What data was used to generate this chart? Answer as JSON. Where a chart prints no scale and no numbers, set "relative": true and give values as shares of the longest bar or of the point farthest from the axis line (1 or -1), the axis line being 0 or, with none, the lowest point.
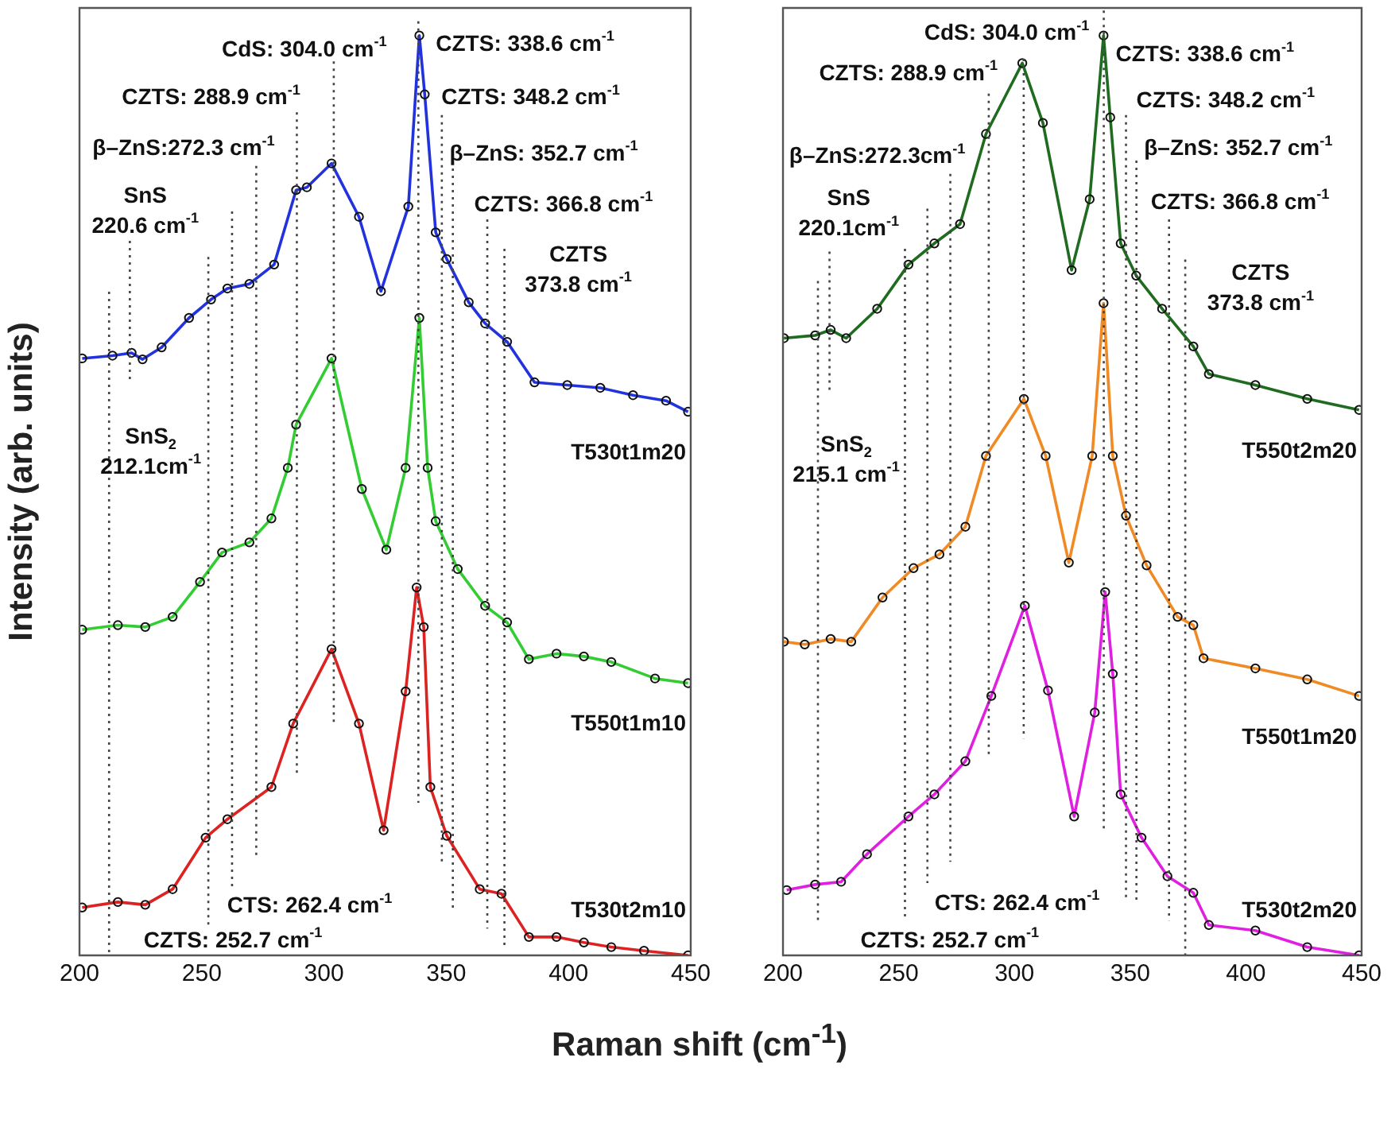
{
  "chart_data": [
    {
      "type": "line",
      "relative": true,
      "ylabel": "Intensity (arb. units)",
      "xlabel": "Raman shift (cm$^{-1}$)",
      "xlim": [
        200,
        450
      ],
      "xticks": [
        200,
        250,
        300,
        350,
        400,
        450
      ],
      "marker": "circle",
      "legend": false,
      "series": [
        {
          "name": "T530t1m20",
          "color": "#2233dd",
          "x": [
            201.1,
            213.5,
            221.3,
            225.8,
            233.6,
            244.8,
            253.8,
            260.5,
            269.5,
            279.6,
            288.6,
            293.0,
            303.1,
            314.3,
            323.3,
            334.5,
            339.0,
            341.2,
            345.7,
            350.2,
            359.2,
            365.9,
            374.9,
            386.1,
            399.5,
            413.0,
            426.4,
            439.9,
            448.9
          ],
          "values": [
            0.649,
            0.652,
            0.655,
            0.648,
            0.661,
            0.693,
            0.713,
            0.725,
            0.73,
            0.751,
            0.832,
            0.835,
            0.861,
            0.803,
            0.722,
            0.814,
            1.0,
            0.936,
            0.786,
            0.757,
            0.71,
            0.687,
            0.667,
            0.623,
            0.62,
            0.617,
            0.609,
            0.603,
            0.591
          ]
        },
        {
          "name": "T550t1m10",
          "color": "#33cc33",
          "x": [
            201.1,
            215.7,
            226.9,
            238.1,
            249.3,
            258.3,
            269.5,
            278.5,
            285.2,
            288.6,
            303.1,
            315.5,
            325.5,
            333.4,
            339.0,
            342.4,
            345.7,
            354.7,
            365.9,
            374.9,
            383.8,
            395.1,
            406.3,
            417.5,
            435.4,
            448.9
          ],
          "values": [
            0.354,
            0.359,
            0.357,
            0.368,
            0.406,
            0.438,
            0.449,
            0.475,
            0.53,
            0.577,
            0.649,
            0.507,
            0.441,
            0.53,
            0.693,
            0.53,
            0.472,
            0.42,
            0.38,
            0.362,
            0.322,
            0.328,
            0.325,
            0.319,
            0.301,
            0.296
          ]
        },
        {
          "name": "T530t2m10",
          "color": "#dd2222",
          "x": [
            201.1,
            215.7,
            226.9,
            238.1,
            251.6,
            260.5,
            278.5,
            287.4,
            303.1,
            314.3,
            324.4,
            333.4,
            337.9,
            340.8,
            343.5,
            350.2,
            363.7,
            372.6,
            383.8,
            395.1,
            406.3,
            417.5,
            430.9,
            448.9
          ],
          "values": [
            0.052,
            0.058,
            0.055,
            0.072,
            0.128,
            0.148,
            0.183,
            0.252,
            0.333,
            0.252,
            0.136,
            0.287,
            0.4,
            0.357,
            0.183,
            0.13,
            0.072,
            0.067,
            0.02,
            0.02,
            0.014,
            0.009,
            0.005,
            0.0
          ]
        }
      ],
      "ref_lines": [
        {
          "axis": "x",
          "value": 212.1,
          "label": "SnS$_{2}$\n212.1cm$^{-1}$",
          "line_style": "dotted"
        },
        {
          "axis": "x",
          "value": 220.6,
          "label": "SnS\n220.6 cm$^{-1}$",
          "line_style": "dotted"
        },
        {
          "axis": "x",
          "value": 252.7,
          "label": "CZTS: 252.7 cm$^{-1}$",
          "line_style": "dotted"
        },
        {
          "axis": "x",
          "value": 262.4,
          "label": "CTS: 262.4 cm$^{-1}$",
          "line_style": "dotted"
        },
        {
          "axis": "x",
          "value": 272.3,
          "label": "β–ZnS:272.3 cm$^{-1}$",
          "line_style": "dotted"
        },
        {
          "axis": "x",
          "value": 288.9,
          "label": "CZTS: 288.9 cm$^{-1}$",
          "line_style": "dotted"
        },
        {
          "axis": "x",
          "value": 304.0,
          "label": "CdS: 304.0 cm$^{-1}$",
          "line_style": "dotted"
        },
        {
          "axis": "x",
          "value": 338.6,
          "label": "CZTS: 338.6 cm$^{-1}$",
          "line_style": "dotted"
        },
        {
          "axis": "x",
          "value": 348.2,
          "label": "CZTS: 348.2 cm$^{-1}$",
          "line_style": "dotted"
        },
        {
          "axis": "x",
          "value": 352.7,
          "label": "β–ZnS: 352.7 cm$^{-1}$",
          "line_style": "dotted"
        },
        {
          "axis": "x",
          "value": 366.8,
          "label": "CZTS: 366.8 cm$^{-1}$",
          "line_style": "dotted"
        },
        {
          "axis": "x",
          "value": 373.8,
          "label": "CZTS\n373.8 cm$^{-1}$",
          "line_style": "dotted"
        }
      ]
    },
    {
      "type": "line",
      "relative": true,
      "xlim": [
        200,
        450
      ],
      "xticks": [
        200,
        250,
        300,
        350,
        400,
        450
      ],
      "marker": "circle",
      "legend": false,
      "series": [
        {
          "name": "T550t2m20",
          "color": "#1f6b1f",
          "x": [
            200.4,
            213.9,
            220.6,
            227.3,
            240.7,
            254.2,
            265.4,
            276.5,
            287.7,
            303.4,
            312.3,
            324.7,
            332.5,
            338.5,
            341.4,
            345.9,
            352.6,
            363.8,
            377.3,
            384.0,
            404.1,
            426.5,
            448.9
          ],
          "values": [
            0.671,
            0.674,
            0.68,
            0.671,
            0.703,
            0.751,
            0.774,
            0.795,
            0.893,
            0.97,
            0.905,
            0.745,
            0.822,
            1.0,
            0.911,
            0.774,
            0.739,
            0.703,
            0.662,
            0.632,
            0.62,
            0.605,
            0.593
          ]
        },
        {
          "name": "T550t1m20",
          "color": "#f08a24",
          "x": [
            200.4,
            209.4,
            220.6,
            229.5,
            243.0,
            256.4,
            267.6,
            278.8,
            287.7,
            304.1,
            313.5,
            323.5,
            333.6,
            338.5,
            342.5,
            348.2,
            357.1,
            370.5,
            377.3,
            381.7,
            404.1,
            426.5,
            448.9
          ],
          "values": [
            0.341,
            0.338,
            0.344,
            0.341,
            0.389,
            0.421,
            0.436,
            0.466,
            0.543,
            0.605,
            0.543,
            0.427,
            0.543,
            0.709,
            0.543,
            0.478,
            0.424,
            0.368,
            0.359,
            0.323,
            0.312,
            0.3,
            0.282
          ]
        },
        {
          "name": "T530t2m20",
          "color": "#e020e0",
          "x": [
            201.6,
            213.9,
            225.1,
            236.3,
            254.2,
            265.4,
            278.8,
            290.0,
            304.5,
            314.5,
            325.8,
            334.7,
            339.2,
            342.5,
            345.9,
            354.9,
            366.1,
            377.3,
            384.0,
            404.1,
            426.5,
            448.9
          ],
          "values": [
            0.071,
            0.077,
            0.08,
            0.11,
            0.151,
            0.175,
            0.211,
            0.282,
            0.38,
            0.288,
            0.151,
            0.264,
            0.395,
            0.306,
            0.175,
            0.128,
            0.086,
            0.068,
            0.033,
            0.027,
            0.009,
            0.0
          ]
        }
      ],
      "ref_lines": [
        {
          "axis": "x",
          "value": 215.1,
          "label": "SnS$_{2}$\n215.1 cm$^{-1}$",
          "line_style": "dotted"
        },
        {
          "axis": "x",
          "value": 220.1,
          "label": "SnS\n220.1cm$^{-1}$",
          "line_style": "dotted"
        },
        {
          "axis": "x",
          "value": 252.7,
          "label": "CZTS: 252.7 cm$^{-1}$",
          "line_style": "dotted"
        },
        {
          "axis": "x",
          "value": 262.4,
          "label": "CTS: 262.4 cm$^{-1}$",
          "line_style": "dotted"
        },
        {
          "axis": "x",
          "value": 272.3,
          "label": "β–ZnS:272.3cm$^{-1}$",
          "line_style": "dotted"
        },
        {
          "axis": "x",
          "value": 288.9,
          "label": "CZTS: 288.9 cm$^{-1}$",
          "line_style": "dotted"
        },
        {
          "axis": "x",
          "value": 304.0,
          "label": "CdS: 304.0 cm$^{-1}$",
          "line_style": "dotted"
        },
        {
          "axis": "x",
          "value": 338.6,
          "label": "CZTS: 338.6 cm$^{-1}$",
          "line_style": "dotted"
        },
        {
          "axis": "x",
          "value": 348.2,
          "label": "CZTS: 348.2 cm$^{-1}$",
          "line_style": "dotted"
        },
        {
          "axis": "x",
          "value": 352.7,
          "label": "β–ZnS: 352.7 cm$^{-1}$",
          "line_style": "dotted"
        },
        {
          "axis": "x",
          "value": 366.8,
          "label": "CZTS: 366.8 cm$^{-1}$",
          "line_style": "dotted"
        },
        {
          "axis": "x",
          "value": 373.8,
          "label": "CZTS\n373.8 cm$^{-1}$",
          "line_style": "dotted"
        }
      ]
    }
  ]
}
